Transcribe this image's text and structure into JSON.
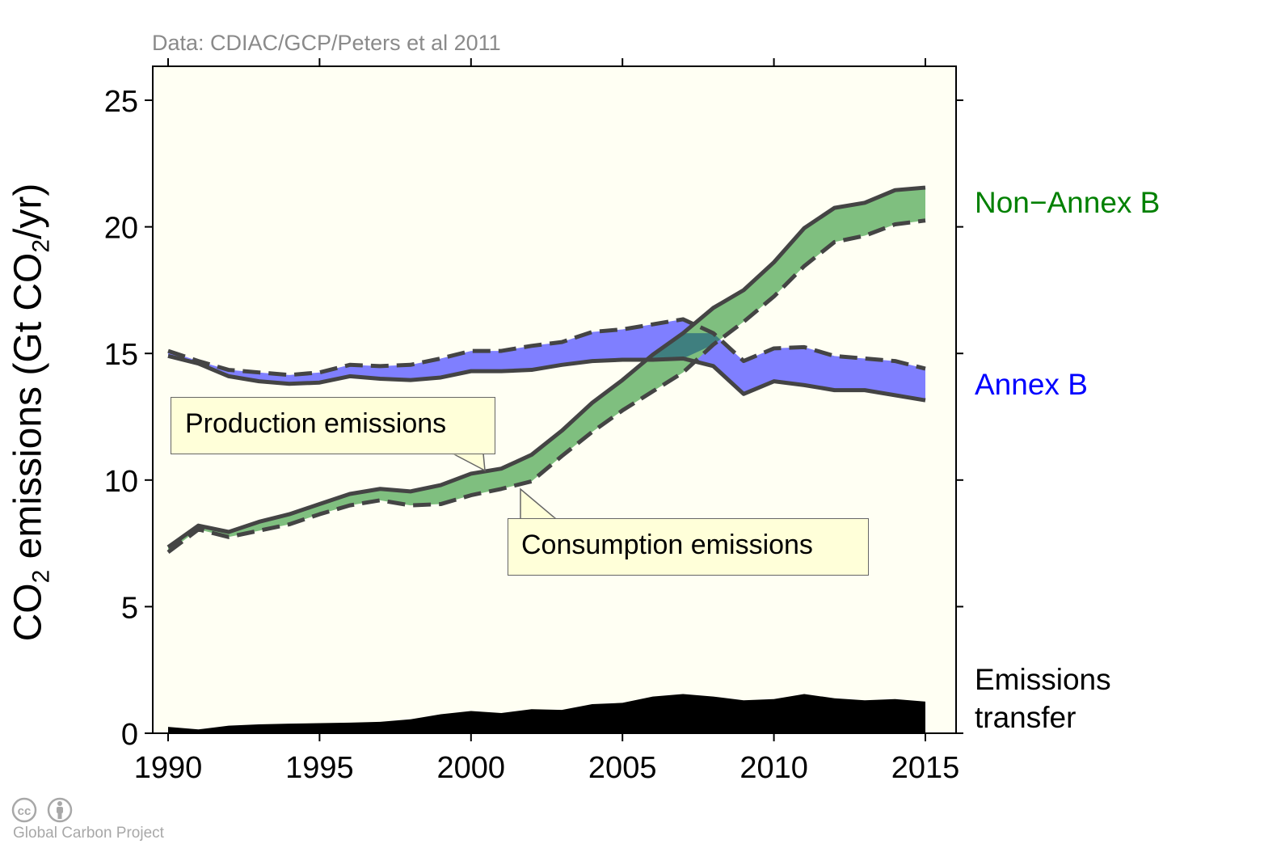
{
  "source_note": "Data: CDIAC/GCP/Peters et al 2011",
  "ylabel_parts": [
    "CO",
    "2",
    " emissions (Gt CO",
    "2",
    "/yr)"
  ],
  "credit": "Global Carbon Project",
  "logo_icons": [
    "cc-icon",
    "attribution-person-icon"
  ],
  "colors": {
    "annex_b": "#0000ff",
    "annex_b_fill": "#7f7fff",
    "non_annex_b": "#008000",
    "non_annex_b_fill": "#7fbf7f",
    "overlap_fill": "#3f7f7f",
    "transfer": "#000000",
    "line": "#444444",
    "plot_background": "#fffff3",
    "callout_background": "#ffffd9"
  },
  "chart_data": {
    "type": "area",
    "xlim": [
      1990,
      2015
    ],
    "ylim": [
      0,
      25
    ],
    "x_ticks": [
      1990,
      1995,
      2000,
      2005,
      2010,
      2015
    ],
    "y_ticks": [
      0,
      5,
      10,
      15,
      20,
      25
    ],
    "grid": false,
    "x": [
      1990,
      1991,
      1992,
      1993,
      1994,
      1995,
      1996,
      1997,
      1998,
      1999,
      2000,
      2001,
      2002,
      2003,
      2004,
      2005,
      2006,
      2007,
      2008,
      2009,
      2010,
      2011,
      2012,
      2013,
      2014,
      2015
    ],
    "series": [
      {
        "name": "Annex B",
        "production": [
          14.9,
          14.6,
          14.1,
          13.9,
          13.8,
          13.85,
          14.1,
          14.0,
          13.95,
          14.05,
          14.3,
          14.3,
          14.35,
          14.55,
          14.7,
          14.75,
          14.75,
          14.8,
          14.5,
          13.4,
          13.9,
          13.75,
          13.55,
          13.55,
          13.35,
          13.15
        ],
        "consumption": [
          15.1,
          14.7,
          14.35,
          14.25,
          14.15,
          14.25,
          14.55,
          14.5,
          14.55,
          14.8,
          15.1,
          15.1,
          15.3,
          15.45,
          15.85,
          15.95,
          16.15,
          16.35,
          15.8,
          14.7,
          15.2,
          15.25,
          14.9,
          14.8,
          14.7,
          14.4
        ]
      },
      {
        "name": "Non−Annex B",
        "production": [
          7.35,
          8.2,
          7.95,
          8.35,
          8.65,
          9.05,
          9.45,
          9.65,
          9.55,
          9.8,
          10.25,
          10.45,
          11.0,
          11.95,
          13.05,
          13.95,
          14.95,
          15.8,
          16.8,
          17.5,
          18.6,
          19.95,
          20.75,
          20.95,
          21.45,
          21.55
        ],
        "consumption": [
          7.15,
          8.05,
          7.75,
          8.0,
          8.25,
          8.65,
          9.0,
          9.2,
          9.0,
          9.05,
          9.4,
          9.65,
          9.95,
          10.95,
          11.9,
          12.75,
          13.5,
          14.25,
          15.35,
          16.25,
          17.25,
          18.45,
          19.4,
          19.65,
          20.1,
          20.25
        ]
      },
      {
        "name": "Emissions transfer",
        "values": [
          0.25,
          0.15,
          0.3,
          0.35,
          0.38,
          0.4,
          0.42,
          0.45,
          0.55,
          0.75,
          0.88,
          0.8,
          0.95,
          0.92,
          1.15,
          1.2,
          1.45,
          1.55,
          1.45,
          1.3,
          1.35,
          1.55,
          1.38,
          1.3,
          1.35,
          1.25
        ]
      }
    ],
    "series_labels": [
      "Non−Annex B",
      "Annex B",
      "Emissions",
      "transfer"
    ],
    "annotations": [
      "Production emissions",
      "Consumption emissions"
    ]
  }
}
